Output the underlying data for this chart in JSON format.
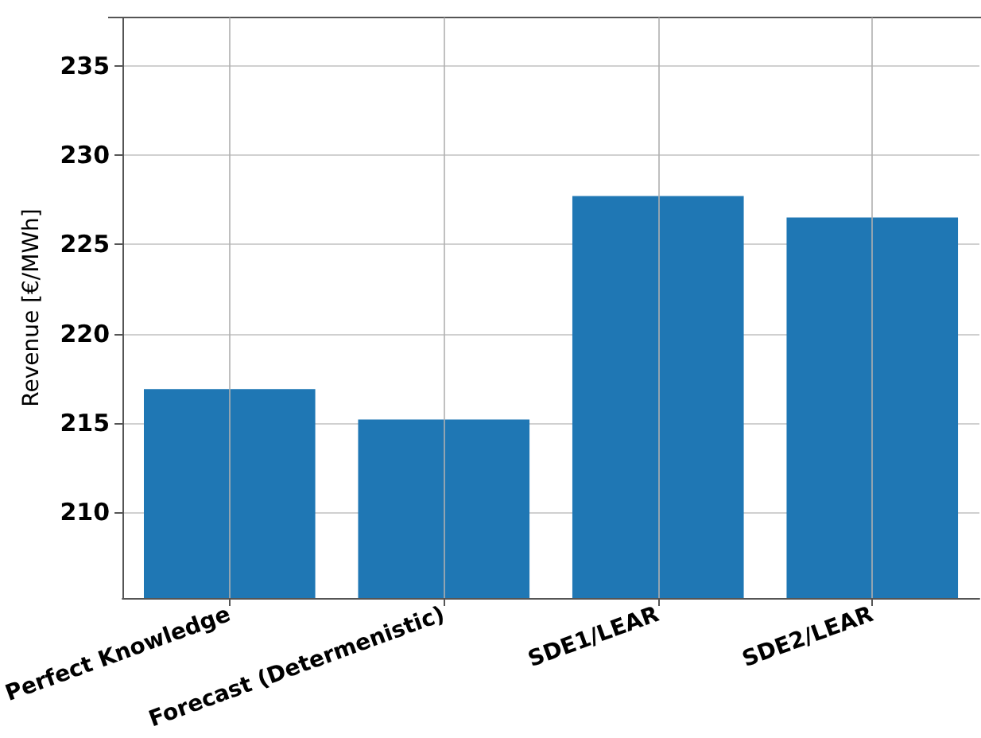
{
  "chart_data": {
    "type": "bar",
    "ylabel": "Revenue [€/MWh]",
    "categories": [
      "Perfect Knowledge",
      "Forecast (Determenistic)",
      "SDE1/LEAR",
      "SDE2/LEAR"
    ],
    "values": [
      216.9,
      215.2,
      227.7,
      226.5
    ],
    "color": "#1f77b4",
    "ylim": [
      205.2,
      237.7
    ],
    "yticks": [
      210,
      215,
      220,
      225,
      230,
      235
    ],
    "grid": true
  }
}
